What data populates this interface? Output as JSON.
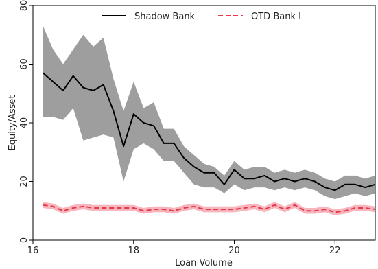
{
  "chart_data": {
    "type": "line",
    "xlabel": "Loan Volume",
    "ylabel": "Equity/Asset",
    "xlim": [
      16,
      22.8
    ],
    "ylim": [
      0,
      80
    ],
    "x_ticks": [
      "16",
      "18",
      "20",
      "22"
    ],
    "y_ticks": [
      "0",
      "20",
      "40",
      "60",
      "80"
    ],
    "grid": false,
    "legend_position": "top",
    "series": [
      {
        "name": "Shadow Bank",
        "style": "solid",
        "color": "#000000",
        "band_color": "#9e9e9e",
        "x": [
          16.2,
          16.4,
          16.6,
          16.8,
          17.0,
          17.2,
          17.4,
          17.6,
          17.8,
          18.0,
          18.2,
          18.4,
          18.6,
          18.8,
          19.0,
          19.2,
          19.4,
          19.6,
          19.8,
          20.0,
          20.2,
          20.4,
          20.6,
          20.8,
          21.0,
          21.2,
          21.4,
          21.6,
          21.8,
          22.0,
          22.2,
          22.4,
          22.6,
          22.8
        ],
        "y": [
          57,
          54,
          51,
          56,
          52,
          51,
          53,
          44,
          32,
          43,
          40,
          39,
          33,
          33,
          28,
          25,
          23,
          23,
          19,
          24,
          21,
          21,
          22,
          20,
          21,
          20,
          21,
          20,
          18,
          17,
          19,
          19,
          18,
          19
        ],
        "lower": [
          42,
          42,
          41,
          45,
          34,
          35,
          36,
          35,
          20,
          31,
          33,
          31,
          27,
          27,
          23,
          19,
          18,
          18,
          16,
          19,
          17,
          18,
          18,
          17,
          18,
          17,
          18,
          17,
          15,
          14,
          15,
          16,
          15,
          16
        ],
        "upper": [
          73,
          65,
          60,
          65,
          70,
          66,
          69,
          55,
          44,
          54,
          45,
          47,
          38,
          38,
          32,
          29,
          26,
          25,
          22,
          27,
          24,
          25,
          25,
          23,
          24,
          23,
          24,
          23,
          21,
          20,
          22,
          22,
          21,
          22
        ]
      },
      {
        "name": "OTD Bank I",
        "style": "dashed",
        "color": "#e8384a",
        "band_color": "#f7b6bd",
        "x": [
          16.2,
          16.4,
          16.6,
          16.8,
          17.0,
          17.2,
          17.4,
          17.6,
          17.8,
          18.0,
          18.2,
          18.4,
          18.6,
          18.8,
          19.0,
          19.2,
          19.4,
          19.6,
          19.8,
          20.0,
          20.2,
          20.4,
          20.6,
          20.8,
          21.0,
          21.2,
          21.4,
          21.6,
          21.8,
          22.0,
          22.2,
          22.4,
          22.6,
          22.8
        ],
        "y": [
          12,
          11.5,
          10,
          11,
          11.5,
          11,
          11,
          11,
          11,
          11,
          10,
          10.5,
          10.5,
          10,
          11,
          11.5,
          10.5,
          10.5,
          10.5,
          10.5,
          11,
          11.5,
          10.5,
          12,
          10.5,
          12,
          10,
          10,
          10.5,
          9.5,
          10,
          11,
          11,
          10.5
        ],
        "lower": [
          11,
          10.5,
          9,
          10,
          10.5,
          10,
          10,
          10,
          10,
          10,
          9,
          9.5,
          9.5,
          9,
          10,
          10.5,
          9.5,
          9.5,
          9.5,
          9.5,
          10,
          10.5,
          9.5,
          11,
          9.5,
          11,
          9,
          9,
          9.5,
          8.5,
          9,
          10,
          10,
          9.5
        ],
        "upper": [
          13,
          12.5,
          11,
          12,
          12.5,
          12,
          12,
          12,
          12,
          12,
          11,
          11.5,
          11.5,
          11,
          12,
          12.5,
          11.5,
          11.5,
          11.5,
          11.5,
          12,
          12.5,
          11.5,
          13,
          11.5,
          13,
          11,
          11,
          11.5,
          10.5,
          11,
          12,
          12,
          11.5
        ]
      }
    ]
  }
}
